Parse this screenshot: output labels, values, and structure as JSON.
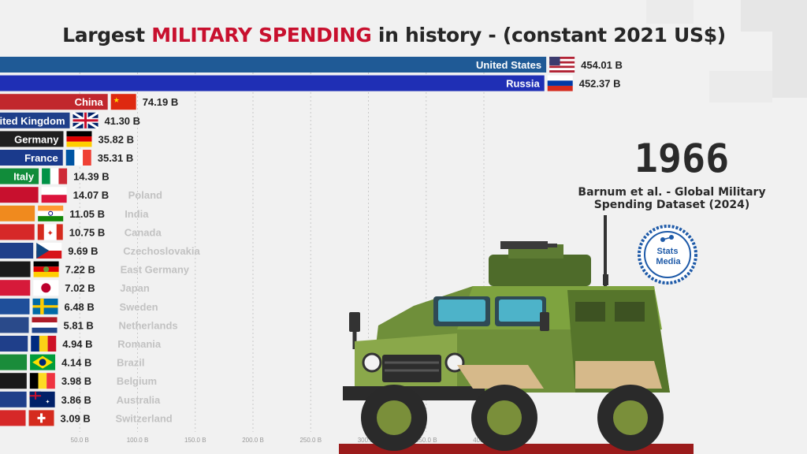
{
  "header": {
    "title_part1": "Largest ",
    "title_highlight": "MILITARY SPENDING",
    "title_part2": " in history  - (constant 2021 US$)"
  },
  "year": "1966",
  "source": "Barnum et al. - Global Military Spending Dataset (2024)",
  "logo": {
    "text": "Stats Media"
  },
  "chart_data": {
    "type": "bar",
    "orientation": "horizontal",
    "title": "Largest MILITARY SPENDING in history  - (constant 2021 US$)",
    "unit": "B",
    "x_ticks": [
      "50.0 B",
      "100.0 B",
      "150.0 B",
      "200.0 B",
      "250.0 B",
      "300.0 B",
      "350.0 B",
      "400.0 B"
    ],
    "x_tick_values": [
      50,
      100,
      150,
      200,
      250,
      300,
      350,
      400
    ],
    "grid": true,
    "categories": [
      "United States",
      "Russia",
      "China",
      "United Kingdom",
      "Germany",
      "France",
      "Italy",
      "Poland",
      "India",
      "Canada",
      "Czechoslovakia",
      "East Germany",
      "Japan",
      "Sweden",
      "Netherlands",
      "Romania",
      "Brazil",
      "Belgium",
      "Australia",
      "Switzerland"
    ],
    "values": [
      454.01,
      452.37,
      74.19,
      41.3,
      35.82,
      35.31,
      14.39,
      14.07,
      11.05,
      10.75,
      9.69,
      7.22,
      7.02,
      6.48,
      5.81,
      4.94,
      4.14,
      3.98,
      3.86,
      3.09
    ],
    "value_labels": [
      "454.01 B",
      "452.37 B",
      "74.19 B",
      "41.30 B",
      "35.82 B",
      "35.31 B",
      "14.39 B",
      "14.07 B",
      "11.05 B",
      "10.75 B",
      "9.69 B",
      "7.22 B",
      "7.02 B",
      "6.48 B",
      "5.81 B",
      "4.94 B",
      "4.14 B",
      "3.98 B",
      "3.86 B",
      "3.09 B"
    ],
    "bar_colors": [
      "#1f5a96",
      "#1f2fb5",
      "#c1272d",
      "#1f3f8a",
      "#1f1f1f",
      "#1a3a8c",
      "#118c3a",
      "#c8102e",
      "#f08a1e",
      "#d62828",
      "#1f3f8a",
      "#1a1a1a",
      "#d61a3a",
      "#1f4f9a",
      "#2a4a8a",
      "#1f3f8a",
      "#1a8c3a",
      "#1a1a1a",
      "#1f3f8a",
      "#d62828"
    ],
    "flags": [
      "us",
      "ru",
      "cn",
      "gb",
      "de",
      "fr",
      "it",
      "pl",
      "in",
      "ca",
      "cz",
      "ddr",
      "jp",
      "se",
      "nl",
      "ro",
      "br",
      "be",
      "au",
      "ch"
    ]
  }
}
